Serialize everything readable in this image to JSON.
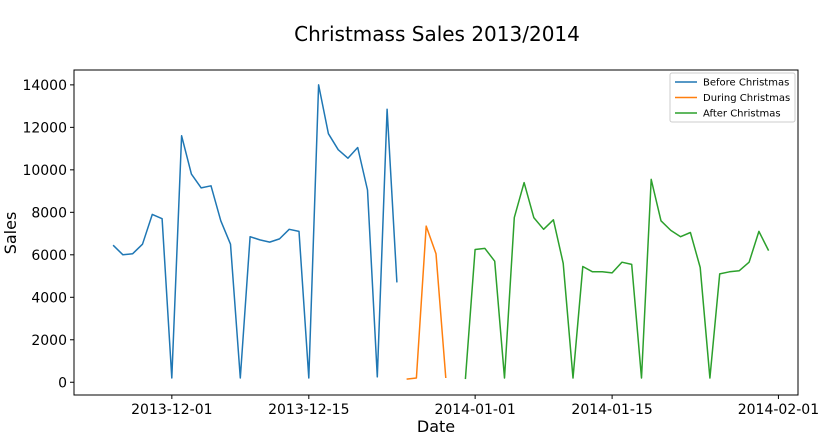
{
  "chart_data": {
    "type": "line",
    "title": "Christmass Sales 2013/2014",
    "xlabel": "Date",
    "ylabel": "Sales",
    "xlim": [
      "2013-11-21",
      "2014-02-03"
    ],
    "ylim": [
      -600,
      14700
    ],
    "x_ticks": [
      "2013-12-01",
      "2013-12-15",
      "2014-01-01",
      "2014-01-15",
      "2014-02-01"
    ],
    "y_ticks": [
      0,
      2000,
      4000,
      6000,
      8000,
      10000,
      12000,
      14000
    ],
    "grid": false,
    "legend_position": "top-right",
    "series": [
      {
        "name": "Before Christmas",
        "color": "#1f77b4",
        "points": [
          [
            "2013-11-25",
            6450
          ],
          [
            "2013-11-26",
            6000
          ],
          [
            "2013-11-27",
            6050
          ],
          [
            "2013-11-28",
            6500
          ],
          [
            "2013-11-29",
            7900
          ],
          [
            "2013-11-30",
            7700
          ],
          [
            "2013-12-01",
            200
          ],
          [
            "2013-12-02",
            11600
          ],
          [
            "2013-12-03",
            9800
          ],
          [
            "2013-12-04",
            9150
          ],
          [
            "2013-12-05",
            9250
          ],
          [
            "2013-12-06",
            7600
          ],
          [
            "2013-12-07",
            6500
          ],
          [
            "2013-12-08",
            200
          ],
          [
            "2013-12-09",
            6850
          ],
          [
            "2013-12-10",
            6700
          ],
          [
            "2013-12-11",
            6600
          ],
          [
            "2013-12-12",
            6750
          ],
          [
            "2013-12-13",
            7200
          ],
          [
            "2013-12-14",
            7100
          ],
          [
            "2013-12-15",
            200
          ],
          [
            "2013-12-16",
            14000
          ],
          [
            "2013-12-17",
            11700
          ],
          [
            "2013-12-18",
            10950
          ],
          [
            "2013-12-19",
            10550
          ],
          [
            "2013-12-20",
            11050
          ],
          [
            "2013-12-21",
            9050
          ],
          [
            "2013-12-22",
            250
          ],
          [
            "2013-12-23",
            12850
          ],
          [
            "2013-12-24",
            4700
          ]
        ]
      },
      {
        "name": "During Christmas",
        "color": "#ff7f0e",
        "points": [
          [
            "2013-12-25",
            150
          ],
          [
            "2013-12-26",
            200
          ],
          [
            "2013-12-27",
            7350
          ],
          [
            "2013-12-28",
            6050
          ],
          [
            "2013-12-29",
            200
          ]
        ]
      },
      {
        "name": "After Christmas",
        "color": "#2ca02c",
        "points": [
          [
            "2013-12-31",
            150
          ],
          [
            "2014-01-01",
            6250
          ],
          [
            "2014-01-02",
            6300
          ],
          [
            "2014-01-03",
            5700
          ],
          [
            "2014-01-04",
            200
          ],
          [
            "2014-01-05",
            7750
          ],
          [
            "2014-01-06",
            9400
          ],
          [
            "2014-01-07",
            7750
          ],
          [
            "2014-01-08",
            7200
          ],
          [
            "2014-01-09",
            7650
          ],
          [
            "2014-01-10",
            5600
          ],
          [
            "2014-01-11",
            200
          ],
          [
            "2014-01-12",
            5450
          ],
          [
            "2014-01-13",
            5200
          ],
          [
            "2014-01-14",
            5200
          ],
          [
            "2014-01-15",
            5150
          ],
          [
            "2014-01-16",
            5650
          ],
          [
            "2014-01-17",
            5550
          ],
          [
            "2014-01-18",
            200
          ],
          [
            "2014-01-19",
            9550
          ],
          [
            "2014-01-20",
            7600
          ],
          [
            "2014-01-21",
            7150
          ],
          [
            "2014-01-22",
            6850
          ],
          [
            "2014-01-23",
            7050
          ],
          [
            "2014-01-24",
            5400
          ],
          [
            "2014-01-25",
            200
          ],
          [
            "2014-01-26",
            5100
          ],
          [
            "2014-01-27",
            5200
          ],
          [
            "2014-01-28",
            5250
          ],
          [
            "2014-01-29",
            5650
          ],
          [
            "2014-01-30",
            7100
          ],
          [
            "2014-01-31",
            6200
          ]
        ]
      }
    ]
  }
}
